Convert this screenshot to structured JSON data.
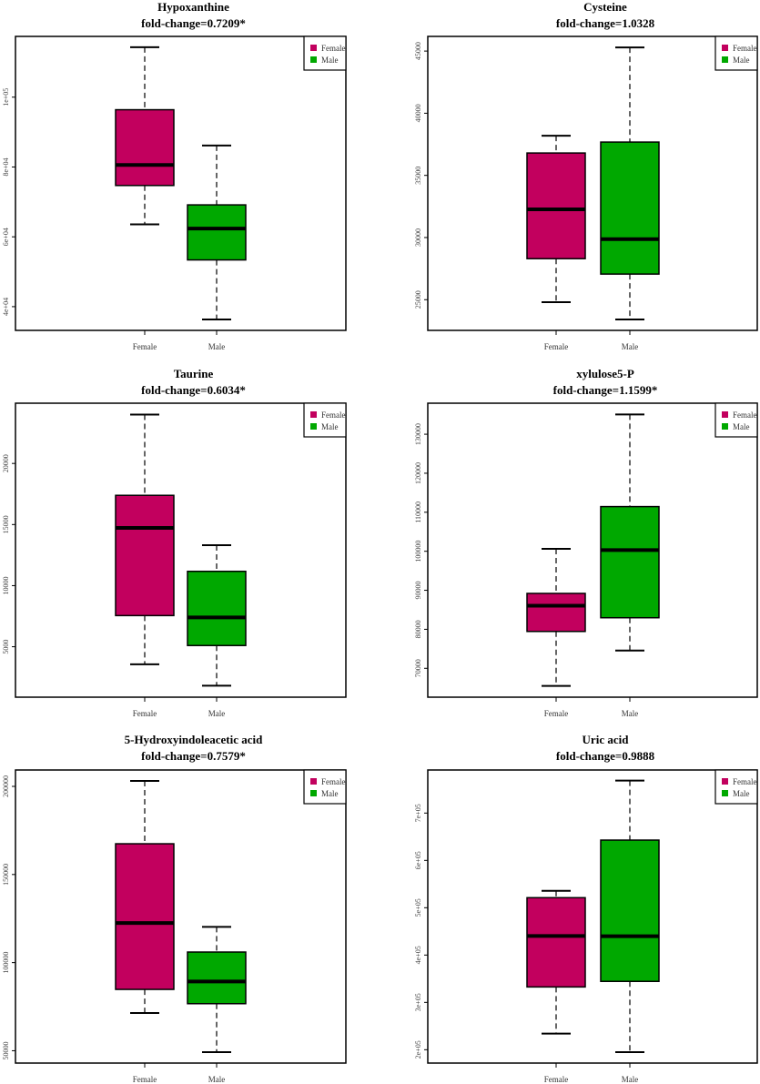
{
  "colors": {
    "Female": "#C2005E",
    "Male": "#00A800"
  },
  "chart_data": [
    {
      "type": "box",
      "title": "Hypoxanthine",
      "subtitle": "fold-change=0.7209*",
      "categories": [
        "Female",
        "Male"
      ],
      "legend": [
        "Female",
        "Male"
      ],
      "legend_position": "top-right",
      "ylim": [
        33200,
        117400
      ],
      "yticks": [
        {
          "v": 100000,
          "label": "1e+05"
        },
        {
          "v": 80000,
          "label": "8e+04"
        },
        {
          "v": 60000,
          "label": "6e+04"
        },
        {
          "v": 40000,
          "label": "4e+04"
        }
      ],
      "boxes": [
        {
          "name": "Female",
          "whisker_low": 63570,
          "q1": 74700,
          "median": 80570,
          "q3": 96400,
          "whisker_high": 114300
        },
        {
          "name": "Male",
          "whisker_low": 36340,
          "q1": 53380,
          "median": 62350,
          "q3": 69150,
          "whisker_high": 86140
        }
      ]
    },
    {
      "type": "box",
      "title": "Cysteine",
      "subtitle": "fold-change=1.0328",
      "categories": [
        "Female",
        "Male"
      ],
      "legend": [
        "Female",
        "Male"
      ],
      "legend_position": "top-right",
      "ylim": [
        22530,
        46180
      ],
      "yticks": [
        {
          "v": 45000,
          "label": "45000"
        },
        {
          "v": 40000,
          "label": "40000"
        },
        {
          "v": 35000,
          "label": "35000"
        },
        {
          "v": 30000,
          "label": "30000"
        },
        {
          "v": 25000,
          "label": "25000"
        }
      ],
      "boxes": [
        {
          "name": "Female",
          "whisker_low": 24800,
          "q1": 28300,
          "median": 32270,
          "q3": 36800,
          "whisker_high": 38190
        },
        {
          "name": "Male",
          "whisker_low": 23410,
          "q1": 27060,
          "median": 29870,
          "q3": 37680,
          "whisker_high": 45290
        }
      ]
    },
    {
      "type": "box",
      "title": "Taurine",
      "subtitle": "fold-change=0.6034*",
      "categories": [
        "Female",
        "Male"
      ],
      "legend": [
        "Female",
        "Male"
      ],
      "legend_position": "top-right",
      "ylim": [
        872,
        24930
      ],
      "yticks": [
        {
          "v": 20000,
          "label": "20000"
        },
        {
          "v": 15000,
          "label": "15000"
        },
        {
          "v": 10000,
          "label": "10000"
        },
        {
          "v": 5000,
          "label": "5000"
        }
      ],
      "boxes": [
        {
          "name": "Female",
          "whisker_low": 3560,
          "q1": 7550,
          "median": 14730,
          "q3": 17390,
          "whisker_high": 24000
        },
        {
          "name": "Male",
          "whisker_low": 1810,
          "q1": 5100,
          "median": 7400,
          "q3": 11170,
          "whisker_high": 13310
        }
      ]
    },
    {
      "type": "box",
      "title": "xylulose5-P",
      "subtitle": "fold-change=1.1599*",
      "categories": [
        "Female",
        "Male"
      ],
      "legend": [
        "Female",
        "Male"
      ],
      "legend_position": "top-right",
      "ylim": [
        62600,
        137950
      ],
      "yticks": [
        {
          "v": 130000,
          "label": "130000"
        },
        {
          "v": 120000,
          "label": "120000"
        },
        {
          "v": 110000,
          "label": "110000"
        },
        {
          "v": 100000,
          "label": "100000"
        },
        {
          "v": 90000,
          "label": "90000"
        },
        {
          "v": 80000,
          "label": "80000"
        },
        {
          "v": 70000,
          "label": "70000"
        }
      ],
      "boxes": [
        {
          "name": "Female",
          "whisker_low": 65500,
          "q1": 79450,
          "median": 86050,
          "q3": 89200,
          "whisker_high": 100620
        },
        {
          "name": "Male",
          "whisker_low": 74550,
          "q1": 82960,
          "median": 100300,
          "q3": 111450,
          "whisker_high": 135070
        }
      ]
    },
    {
      "type": "box",
      "title": "5-Hydroxyindoleacetic acid",
      "subtitle": "fold-change=0.7579*",
      "categories": [
        "Female",
        "Male"
      ],
      "legend": [
        "Female",
        "Male"
      ],
      "legend_position": "top-right",
      "ylim": [
        43000,
        209300
      ],
      "yticks": [
        {
          "v": 200000,
          "label": "200000"
        },
        {
          "v": 150000,
          "label": "150000"
        },
        {
          "v": 100000,
          "label": "100000"
        },
        {
          "v": 50000,
          "label": "50000"
        }
      ],
      "boxes": [
        {
          "name": "Female",
          "whisker_low": 71400,
          "q1": 84800,
          "median": 122500,
          "q3": 167440,
          "whisker_high": 203100
        },
        {
          "name": "Male",
          "whisker_low": 49200,
          "q1": 76700,
          "median": 89300,
          "q3": 106000,
          "whisker_high": 120300
        }
      ]
    },
    {
      "type": "box",
      "title": "Uric acid",
      "subtitle": "fold-change=0.9888",
      "categories": [
        "Female",
        "Male"
      ],
      "legend": [
        "Female",
        "Male"
      ],
      "legend_position": "top-right",
      "ylim": [
        171800,
        791000
      ],
      "yticks": [
        {
          "v": 700000,
          "label": "7e+05"
        },
        {
          "v": 600000,
          "label": "6e+05"
        },
        {
          "v": 500000,
          "label": "5e+05"
        },
        {
          "v": 400000,
          "label": "4e+05"
        },
        {
          "v": 300000,
          "label": "3e+05"
        },
        {
          "v": 200000,
          "label": "2e+05"
        }
      ],
      "boxes": [
        {
          "name": "Female",
          "whisker_low": 234000,
          "q1": 332600,
          "median": 440400,
          "q3": 521200,
          "whisker_high": 535700
        },
        {
          "name": "Male",
          "whisker_low": 194900,
          "q1": 344400,
          "median": 439900,
          "q3": 642900,
          "whisker_high": 768700
        }
      ]
    }
  ]
}
